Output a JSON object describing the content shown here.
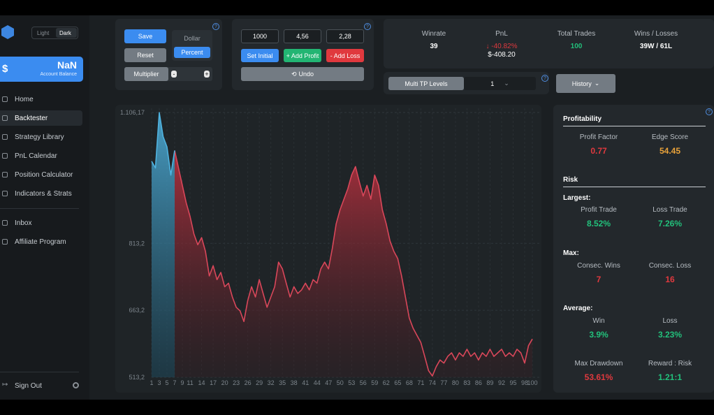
{
  "sidebar": {
    "theme_toggle": [
      "Light",
      "Dark"
    ],
    "balance": {
      "symbol": "$",
      "value": "NaN",
      "label": "Account Balance"
    },
    "nav": [
      "Home",
      "Backtester",
      "Strategy Library",
      "PnL Calendar",
      "Position Calculator",
      "Indicators & Strats"
    ],
    "nav2": [
      "Inbox",
      "Affiliate Program"
    ],
    "sign_out": "Sign Out"
  },
  "controls": {
    "save": "Save",
    "reset": "Reset",
    "multiplier": "Multiplier",
    "dollar": "Dollar",
    "percent": "Percent",
    "inputs": [
      "1000",
      "4,56",
      "2,28"
    ],
    "set_initial": "Set Initial",
    "add_profit": "+ Add Profit",
    "add_loss": "- Add Loss",
    "undo": "Undo"
  },
  "stats": {
    "winrate": {
      "label": "Winrate",
      "value": "39"
    },
    "pnl": {
      "label": "PnL",
      "percent": "-40.82%",
      "amount": "$-408.20"
    },
    "total_trades": {
      "label": "Total Trades",
      "value": "100"
    },
    "wins_losses": {
      "label": "Wins / Losses",
      "value": "39W / 61L"
    }
  },
  "multi_tp": {
    "label": "Multi TP Levels",
    "value": "1"
  },
  "history": "History",
  "metrics": {
    "profitability": "Profitability",
    "profit_factor": {
      "label": "Profit Factor",
      "value": "0.77"
    },
    "edge_score": {
      "label": "Edge Score",
      "value": "54.45"
    },
    "risk": "Risk",
    "largest": "Largest:",
    "profit_trade": {
      "label": "Profit Trade",
      "value": "8.52%"
    },
    "loss_trade": {
      "label": "Loss Trade",
      "value": "7.26%"
    },
    "max": "Max:",
    "consec_wins": {
      "label": "Consec. Wins",
      "value": "7"
    },
    "consec_loss": {
      "label": "Consec. Loss",
      "value": "16"
    },
    "average": "Average:",
    "avg_win": {
      "label": "Win",
      "value": "3.9%"
    },
    "avg_loss": {
      "label": "Loss",
      "value": "3.23%"
    },
    "max_drawdown": {
      "label": "Max Drawdown",
      "value": "53.61%"
    },
    "reward_risk": {
      "label": "Reward : Risk",
      "value": "1.21:1"
    }
  },
  "chart_data": {
    "type": "area",
    "x": [
      1,
      2,
      3,
      4,
      5,
      6,
      7,
      8,
      9,
      10,
      11,
      12,
      13,
      14,
      15,
      16,
      17,
      18,
      19,
      20,
      21,
      22,
      23,
      24,
      25,
      26,
      27,
      28,
      29,
      30,
      31,
      32,
      33,
      34,
      35,
      36,
      37,
      38,
      39,
      40,
      41,
      42,
      43,
      44,
      45,
      46,
      47,
      48,
      49,
      50,
      51,
      52,
      53,
      54,
      55,
      56,
      57,
      58,
      59,
      60,
      61,
      62,
      63,
      64,
      65,
      66,
      67,
      68,
      69,
      70,
      71,
      72,
      73,
      74,
      75,
      76,
      77,
      78,
      79,
      80,
      81,
      82,
      83,
      84,
      85,
      86,
      87,
      88,
      89,
      90,
      91,
      92,
      93,
      94,
      95,
      96,
      97,
      98,
      99,
      100
    ],
    "series": [
      {
        "color": "#4fb3e0",
        "values": [
          997,
          982,
          1106,
          1052,
          1029,
          966,
          1021,
          null,
          null,
          null,
          null,
          null,
          null,
          null,
          null,
          null,
          null,
          null,
          null,
          null,
          null,
          null,
          null,
          null,
          null,
          null,
          null,
          null,
          null,
          null,
          null,
          null,
          null,
          null,
          null,
          null,
          null,
          null,
          null,
          null,
          null,
          null,
          null,
          null,
          null,
          null,
          null,
          null,
          null,
          null,
          null,
          null,
          null,
          null,
          null,
          null,
          null,
          null,
          null,
          null,
          null,
          null,
          null,
          null,
          null,
          null,
          null,
          null,
          null,
          null,
          null,
          null,
          null,
          null,
          null,
          null,
          null,
          null,
          null,
          null,
          null,
          null,
          null,
          null,
          null,
          null,
          null,
          null,
          null,
          null,
          null,
          null,
          null,
          null,
          null,
          null,
          null,
          null,
          null,
          null
        ]
      },
      {
        "color": "#d9475a",
        "values": [
          null,
          null,
          null,
          null,
          null,
          null,
          1021,
          982,
          943,
          904,
          873,
          834,
          810,
          826,
          795,
          740,
          763,
          732,
          748,
          716,
          724,
          693,
          670,
          662,
          638,
          685,
          716,
          693,
          732,
          701,
          670,
          693,
          716,
          771,
          756,
          724,
          693,
          716,
          701,
          709,
          724,
          709,
          732,
          724,
          756,
          771,
          756,
          802,
          857,
          888,
          912,
          935,
          966,
          985,
          951,
          919,
          943,
          912,
          966,
          943,
          888,
          857,
          818,
          795,
          779,
          740,
          693,
          646,
          623,
          607,
          591,
          560,
          528,
          516,
          537,
          552,
          545,
          560,
          568,
          552,
          568,
          560,
          576,
          560,
          568,
          552,
          568,
          560,
          576,
          560,
          568,
          576,
          560,
          568,
          560,
          576,
          568,
          545,
          584,
          599
        ]
      }
    ],
    "xlim": [
      1,
      100
    ],
    "xticks": [
      1,
      3,
      5,
      7,
      9,
      11,
      14,
      17,
      20,
      23,
      26,
      29,
      32,
      35,
      38,
      41,
      44,
      47,
      50,
      53,
      56,
      59,
      62,
      65,
      68,
      71,
      74,
      77,
      80,
      83,
      86,
      89,
      92,
      95,
      98,
      100
    ],
    "ylim": [
      513.2,
      1106.17
    ],
    "yticks": [
      {
        "value": 513.2,
        "label": "513,2"
      },
      {
        "value": 663.2,
        "label": "663,2"
      },
      {
        "value": 813.2,
        "label": "813,2"
      },
      {
        "value": 1106.17,
        "label": "1.106,17"
      }
    ],
    "grid": true
  }
}
